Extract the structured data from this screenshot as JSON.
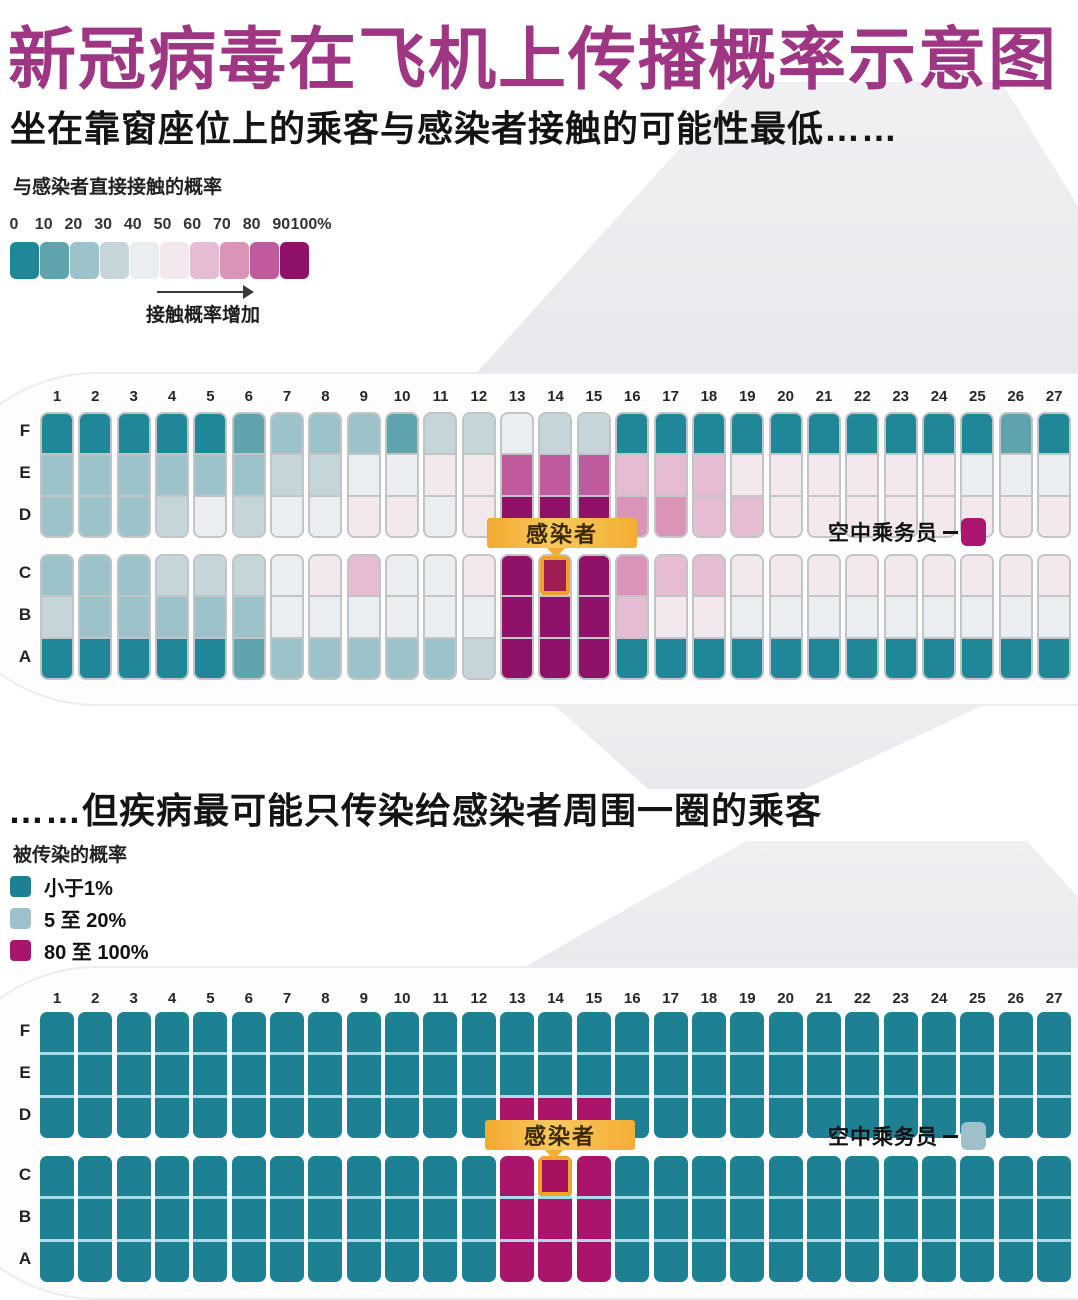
{
  "header": {
    "title": "新冠病毒在飞机上传播概率示意图"
  },
  "colors": {
    "title_text": "#9e3683",
    "infected_border": "#f0a32a",
    "infected_label_bg": "#f6b843"
  },
  "chart_data": [
    {
      "type": "heatmap",
      "subtitle": "坐在靠窗座位上的乘客与感染者接触的可能性最低……",
      "legend": {
        "title": "与感染者直接接触的概率",
        "tick_labels": [
          "0",
          "10",
          "20",
          "30",
          "40",
          "50",
          "60",
          "70",
          "80",
          "90",
          "100%"
        ],
        "arrow_label": "接触概率增加",
        "bucket_colors": [
          "#1f8798",
          "#5fa3ad",
          "#9cc2ca",
          "#c5d6db",
          "#eaeef0",
          "#f3e8ee",
          "#e5bcd1",
          "#d994b8",
          "#bf5a9c",
          "#8f1268"
        ]
      },
      "columns": [
        "1",
        "2",
        "3",
        "4",
        "5",
        "6",
        "7",
        "8",
        "9",
        "10",
        "11",
        "12",
        "13",
        "14",
        "15",
        "16",
        "17",
        "18",
        "19",
        "20",
        "21",
        "22",
        "23",
        "24",
        "25",
        "26",
        "27"
      ],
      "rows_upper": [
        "F",
        "E",
        "D"
      ],
      "rows_lower": [
        "C",
        "B",
        "A"
      ],
      "seat_buckets": {
        "F": [
          0,
          0,
          0,
          0,
          0,
          1,
          2,
          2,
          2,
          1,
          3,
          3,
          4,
          3,
          3,
          0,
          0,
          0,
          0,
          0,
          0,
          0,
          0,
          0,
          0,
          1,
          0
        ],
        "E": [
          2,
          2,
          2,
          2,
          2,
          2,
          3,
          3,
          4,
          4,
          5,
          5,
          8,
          8,
          8,
          6,
          6,
          6,
          5,
          5,
          5,
          5,
          5,
          5,
          4,
          4,
          4
        ],
        "D": [
          2,
          2,
          2,
          3,
          4,
          3,
          4,
          4,
          5,
          5,
          4,
          5,
          9,
          9,
          9,
          7,
          7,
          6,
          6,
          5,
          5,
          5,
          5,
          5,
          5,
          5,
          5
        ],
        "C": [
          2,
          2,
          2,
          3,
          3,
          3,
          4,
          5,
          6,
          4,
          4,
          5,
          9,
          9,
          9,
          7,
          6,
          6,
          5,
          5,
          5,
          5,
          5,
          5,
          5,
          5,
          5
        ],
        "B": [
          3,
          2,
          2,
          2,
          2,
          2,
          4,
          4,
          4,
          4,
          4,
          4,
          9,
          9,
          9,
          6,
          5,
          5,
          4,
          4,
          4,
          4,
          4,
          4,
          4,
          4,
          4
        ],
        "A": [
          0,
          0,
          0,
          0,
          0,
          1,
          2,
          2,
          2,
          2,
          2,
          3,
          9,
          9,
          9,
          0,
          0,
          0,
          0,
          0,
          0,
          0,
          0,
          0,
          0,
          0,
          0
        ]
      },
      "infected_seat": {
        "row": "C",
        "column": "14",
        "label": "感染者",
        "fill": "#a01e56"
      },
      "attendant": {
        "label": "空中乘务员",
        "swatch_color": "#ab176e"
      }
    },
    {
      "type": "heatmap",
      "subtitle": "……但疾病最可能只传染给感染者周围一圈的乘客",
      "legend": {
        "title": "被传染的概率",
        "items": [
          {
            "label": "小于1%",
            "color": "#1d8093"
          },
          {
            "label": "5 至 20%",
            "color": "#9fc0cb"
          },
          {
            "label": "80 至 100%",
            "color": "#a8156b"
          }
        ]
      },
      "columns": [
        "1",
        "2",
        "3",
        "4",
        "5",
        "6",
        "7",
        "8",
        "9",
        "10",
        "11",
        "12",
        "13",
        "14",
        "15",
        "16",
        "17",
        "18",
        "19",
        "20",
        "21",
        "22",
        "23",
        "24",
        "25",
        "26",
        "27"
      ],
      "rows_upper": [
        "F",
        "E",
        "D"
      ],
      "rows_lower": [
        "C",
        "B",
        "A"
      ],
      "seat_default_color": "#1d8093",
      "high_probability_seats": [
        "13D",
        "14D",
        "15D",
        "13C",
        "14C",
        "15C",
        "13B",
        "14B",
        "15B",
        "13A",
        "14A",
        "15A"
      ],
      "high_probability_color": "#a8156b",
      "infected_seat": {
        "row": "C",
        "column": "14",
        "label": "感染者",
        "fill": "#a5135e"
      },
      "attendant": {
        "label": "空中乘务员",
        "swatch_color": "#9fc0cb"
      }
    }
  ]
}
